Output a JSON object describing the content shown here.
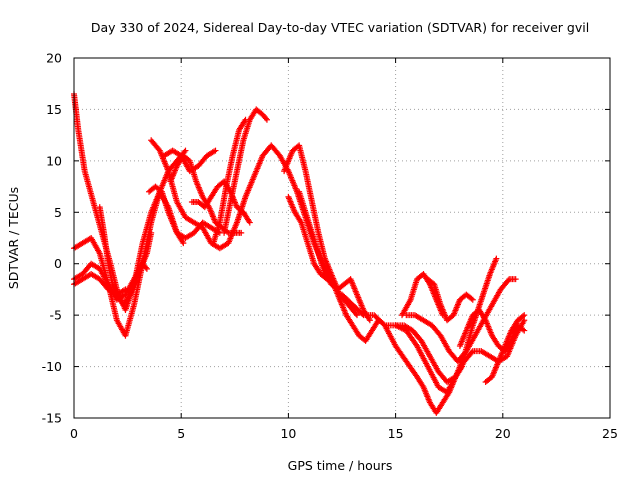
{
  "chart_data": {
    "type": "scatter",
    "title": "Day 330 of 2024, Sidereal Day-to-day VTEC variation (SDTVAR) for receiver gvil",
    "xlabel": "GPS time / hours",
    "ylabel": "SDTVAR / TECUs",
    "xlim": [
      0,
      25
    ],
    "ylim": [
      -15,
      20
    ],
    "x_ticks": [
      0,
      5,
      10,
      15,
      20,
      25
    ],
    "y_ticks": [
      -15,
      -10,
      -5,
      0,
      5,
      10,
      15,
      20
    ],
    "x_tick_labels": [
      "0",
      "5",
      "10",
      "15",
      "20",
      "25"
    ],
    "y_tick_labels": [
      "-15",
      "-10",
      "-5",
      "0",
      "5",
      "10",
      "15",
      "20"
    ],
    "grid": true,
    "legend": "none",
    "marker": "+",
    "series_color": "#ff0000",
    "series": [
      {
        "x": [
          0.0,
          0.2,
          0.5,
          0.9,
          1.3,
          1.7,
          2.0,
          2.4,
          2.8,
          3.2,
          3.6,
          4.0,
          4.4,
          4.8,
          5.1
        ],
        "y": [
          16.5,
          13.0,
          9.0,
          6.0,
          3.0,
          0.0,
          -2.5,
          -4.5,
          -2.0,
          2.0,
          5.0,
          7.0,
          5.5,
          3.0,
          2.0
        ]
      },
      {
        "x": [
          0.0,
          0.4,
          0.8,
          1.2,
          1.6,
          2.0,
          2.4,
          2.8,
          3.2,
          3.6,
          4.0,
          4.4,
          4.8,
          5.2
        ],
        "y": [
          1.5,
          2.0,
          2.5,
          1.0,
          -2.0,
          -5.5,
          -7.0,
          -4.0,
          0.0,
          4.0,
          7.0,
          9.0,
          10.0,
          11.0
        ]
      },
      {
        "x": [
          0.0,
          0.4,
          0.8,
          1.2,
          1.6,
          2.0,
          2.4,
          2.8,
          3.2,
          3.4
        ],
        "y": [
          -1.5,
          -1.0,
          0.0,
          -0.5,
          -2.0,
          -3.5,
          -3.0,
          -1.5,
          0.0,
          -0.5
        ]
      },
      {
        "x": [
          0.0,
          0.4,
          0.8,
          1.2,
          1.6,
          2.0,
          2.4
        ],
        "y": [
          -2.0,
          -1.5,
          -1.0,
          -1.5,
          -2.5,
          -3.0,
          -2.5
        ]
      },
      {
        "x": [
          1.2,
          1.4,
          1.6,
          1.8,
          2.0,
          2.3,
          2.6,
          3.0,
          3.4,
          3.6
        ],
        "y": [
          5.5,
          3.0,
          0.0,
          -2.0,
          -3.0,
          -4.0,
          -3.0,
          -1.0,
          1.0,
          3.0
        ]
      },
      {
        "x": [
          3.5,
          3.8,
          4.1,
          4.4,
          4.8,
          5.2,
          5.6,
          6.0,
          6.4,
          6.8
        ],
        "y": [
          7.0,
          7.5,
          7.0,
          5.0,
          3.0,
          2.5,
          3.0,
          4.0,
          3.5,
          3.0
        ]
      },
      {
        "x": [
          3.6,
          4.0,
          4.4,
          4.8,
          5.2,
          5.6,
          6.0,
          6.4,
          6.8,
          7.2,
          7.6,
          8.0,
          8.4,
          8.8,
          9.2,
          9.6,
          10.0,
          10.4,
          10.8,
          11.2,
          11.6,
          12.0,
          12.4,
          12.8,
          13.2
        ],
        "y": [
          12.0,
          11.0,
          9.0,
          6.0,
          4.5,
          4.0,
          3.5,
          2.0,
          1.5,
          2.0,
          4.0,
          6.5,
          8.5,
          10.5,
          11.5,
          10.5,
          9.0,
          7.0,
          4.5,
          2.0,
          0.0,
          -1.5,
          -3.0,
          -4.0,
          -5.0
        ]
      },
      {
        "x": [
          4.2,
          4.6,
          5.0,
          5.4,
          5.8,
          6.2,
          6.6
        ],
        "y": [
          10.5,
          11.0,
          10.5,
          9.0,
          9.5,
          10.5,
          11.0
        ]
      },
      {
        "x": [
          4.5,
          4.8,
          5.1,
          5.4,
          5.7,
          6.0,
          6.3,
          6.6,
          6.9,
          7.2,
          7.5,
          7.8
        ],
        "y": [
          8.0,
          9.5,
          10.5,
          10.0,
          8.0,
          6.5,
          5.5,
          4.0,
          3.5,
          3.0,
          3.0,
          3.0
        ]
      },
      {
        "x": [
          5.5,
          5.8,
          6.1,
          6.4,
          6.7,
          7.0,
          7.3,
          7.6,
          7.9,
          8.2
        ],
        "y": [
          6.0,
          6.0,
          5.5,
          6.5,
          7.5,
          8.0,
          7.0,
          5.5,
          5.0,
          4.0
        ]
      },
      {
        "x": [
          6.5,
          6.8,
          7.1,
          7.4,
          7.7,
          8.0
        ],
        "y": [
          2.0,
          4.0,
          7.5,
          10.5,
          13.0,
          14.0
        ]
      },
      {
        "x": [
          7.0,
          7.3,
          7.6,
          7.9,
          8.2,
          8.5,
          8.8,
          9.0
        ],
        "y": [
          3.0,
          6.0,
          9.0,
          12.0,
          14.0,
          15.0,
          14.5,
          14.0
        ]
      },
      {
        "x": [
          9.8,
          10.2,
          10.5,
          10.8,
          11.1,
          11.4,
          11.7,
          12.0,
          12.3
        ],
        "y": [
          9.0,
          11.0,
          11.5,
          9.0,
          6.0,
          3.0,
          0.5,
          -1.0,
          -2.5
        ]
      },
      {
        "x": [
          10.0,
          10.3,
          10.6,
          10.9,
          11.2,
          11.5,
          11.8,
          12.1,
          12.4,
          12.7,
          13.0,
          13.3,
          13.6,
          13.9,
          14.2
        ],
        "y": [
          6.5,
          5.0,
          4.0,
          2.0,
          0.0,
          -1.0,
          -1.5,
          -2.0,
          -3.5,
          -5.0,
          -6.0,
          -7.0,
          -7.5,
          -6.5,
          -5.5
        ]
      },
      {
        "x": [
          10.5,
          10.8,
          11.1,
          11.4,
          11.7,
          12.0,
          12.3,
          12.6,
          12.9,
          13.2,
          13.5,
          13.8
        ],
        "y": [
          7.0,
          5.0,
          3.0,
          1.0,
          -1.0,
          -2.0,
          -2.5,
          -2.0,
          -1.5,
          -3.0,
          -4.5,
          -5.5
        ]
      },
      {
        "x": [
          12.5,
          13.0,
          13.5,
          14.0,
          14.5,
          15.0,
          15.5,
          16.0,
          16.5,
          17.0,
          17.4,
          17.8,
          18.2,
          18.6,
          19.0,
          19.4,
          19.7
        ],
        "y": [
          -3.0,
          -4.0,
          -5.0,
          -5.0,
          -6.0,
          -6.0,
          -6.5,
          -8.0,
          -10.0,
          -12.0,
          -12.5,
          -11.0,
          -9.0,
          -6.0,
          -3.5,
          -1.0,
          0.5
        ]
      },
      {
        "x": [
          14.5,
          15.0,
          15.5,
          16.0,
          16.3,
          16.6,
          16.9,
          17.2,
          17.5,
          17.8,
          18.1
        ],
        "y": [
          -6.0,
          -8.0,
          -9.5,
          -11.0,
          -12.0,
          -13.5,
          -14.5,
          -13.5,
          -12.5,
          -11.0,
          -10.0
        ]
      },
      {
        "x": [
          15.0,
          15.4,
          15.8,
          16.2,
          16.6,
          17.0,
          17.4,
          17.8,
          18.2,
          18.6,
          19.0,
          19.4,
          19.8,
          20.2,
          20.6,
          21.0
        ],
        "y": [
          -6.0,
          -6.0,
          -6.5,
          -7.5,
          -9.0,
          -10.5,
          -11.5,
          -11.0,
          -9.5,
          -8.5,
          -8.5,
          -9.0,
          -9.5,
          -9.0,
          -7.0,
          -5.5
        ]
      },
      {
        "x": [
          15.5,
          15.9,
          16.3,
          16.7,
          17.1,
          17.5,
          17.9,
          18.3,
          18.7,
          19.1,
          19.5,
          19.9,
          20.3,
          20.6
        ],
        "y": [
          -5.0,
          -5.0,
          -5.5,
          -6.0,
          -7.0,
          -8.5,
          -9.5,
          -8.5,
          -7.0,
          -5.5,
          -4.0,
          -2.5,
          -1.5,
          -1.5
        ]
      },
      {
        "x": [
          15.3,
          15.7,
          16.0,
          16.3,
          16.6,
          16.9,
          17.2
        ],
        "y": [
          -5.0,
          -3.5,
          -1.5,
          -1.0,
          -2.0,
          -3.5,
          -5.0
        ]
      },
      {
        "x": [
          16.5,
          16.8,
          17.1,
          17.4,
          17.7,
          18.0,
          18.3,
          18.6
        ],
        "y": [
          -1.5,
          -2.0,
          -4.0,
          -5.5,
          -5.0,
          -3.5,
          -3.0,
          -3.5
        ]
      },
      {
        "x": [
          18.0,
          18.3,
          18.6,
          18.9,
          19.2,
          19.5,
          19.8,
          20.1,
          20.4,
          20.7,
          21.0
        ],
        "y": [
          -8.0,
          -6.5,
          -5.0,
          -4.5,
          -5.5,
          -7.0,
          -8.0,
          -8.5,
          -7.5,
          -6.0,
          -6.5
        ]
      },
      {
        "x": [
          19.2,
          19.5,
          19.8,
          20.1,
          20.4,
          20.7,
          21.0
        ],
        "y": [
          -11.5,
          -11.0,
          -9.5,
          -8.0,
          -6.5,
          -5.5,
          -5.0
        ]
      }
    ]
  }
}
